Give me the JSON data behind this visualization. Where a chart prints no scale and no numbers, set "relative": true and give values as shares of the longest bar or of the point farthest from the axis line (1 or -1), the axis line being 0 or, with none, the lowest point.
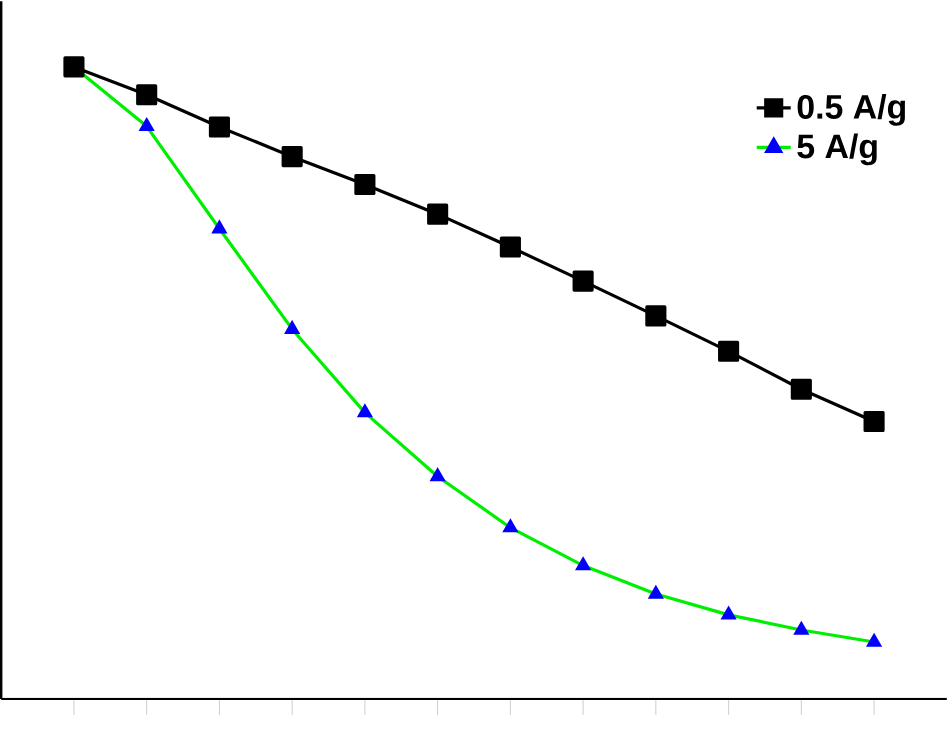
{
  "chart_data": {
    "type": "line",
    "relative": true,
    "legend": "top right",
    "categories": [
      null,
      null,
      null,
      null,
      null,
      null,
      null,
      null,
      null,
      null,
      null,
      null
    ],
    "series": [
      {
        "name": "0.5 A/g",
        "color": "#000000",
        "marker": "square",
        "values": [
          1,
          0.956,
          0.905,
          0.858,
          0.814,
          0.767,
          0.715,
          0.661,
          0.606,
          0.55,
          0.49,
          0.439
        ]
      },
      {
        "name": "5 A/g",
        "color": "#00ee00",
        "marker": "triangle",
        "colors": [
          "#0000ff",
          "#0000ff",
          "#0000ff",
          "#0000ff",
          "#0000ff",
          "#0000ff",
          "#0000ff",
          "#0000ff",
          "#0000ff",
          "#0000ff",
          "#0000ff",
          "#0000ff"
        ],
        "values": [
          1,
          0.906,
          0.744,
          0.585,
          0.453,
          0.352,
          0.271,
          0.211,
          0.166,
          0.133,
          0.109,
          0.09
        ]
      }
    ]
  }
}
